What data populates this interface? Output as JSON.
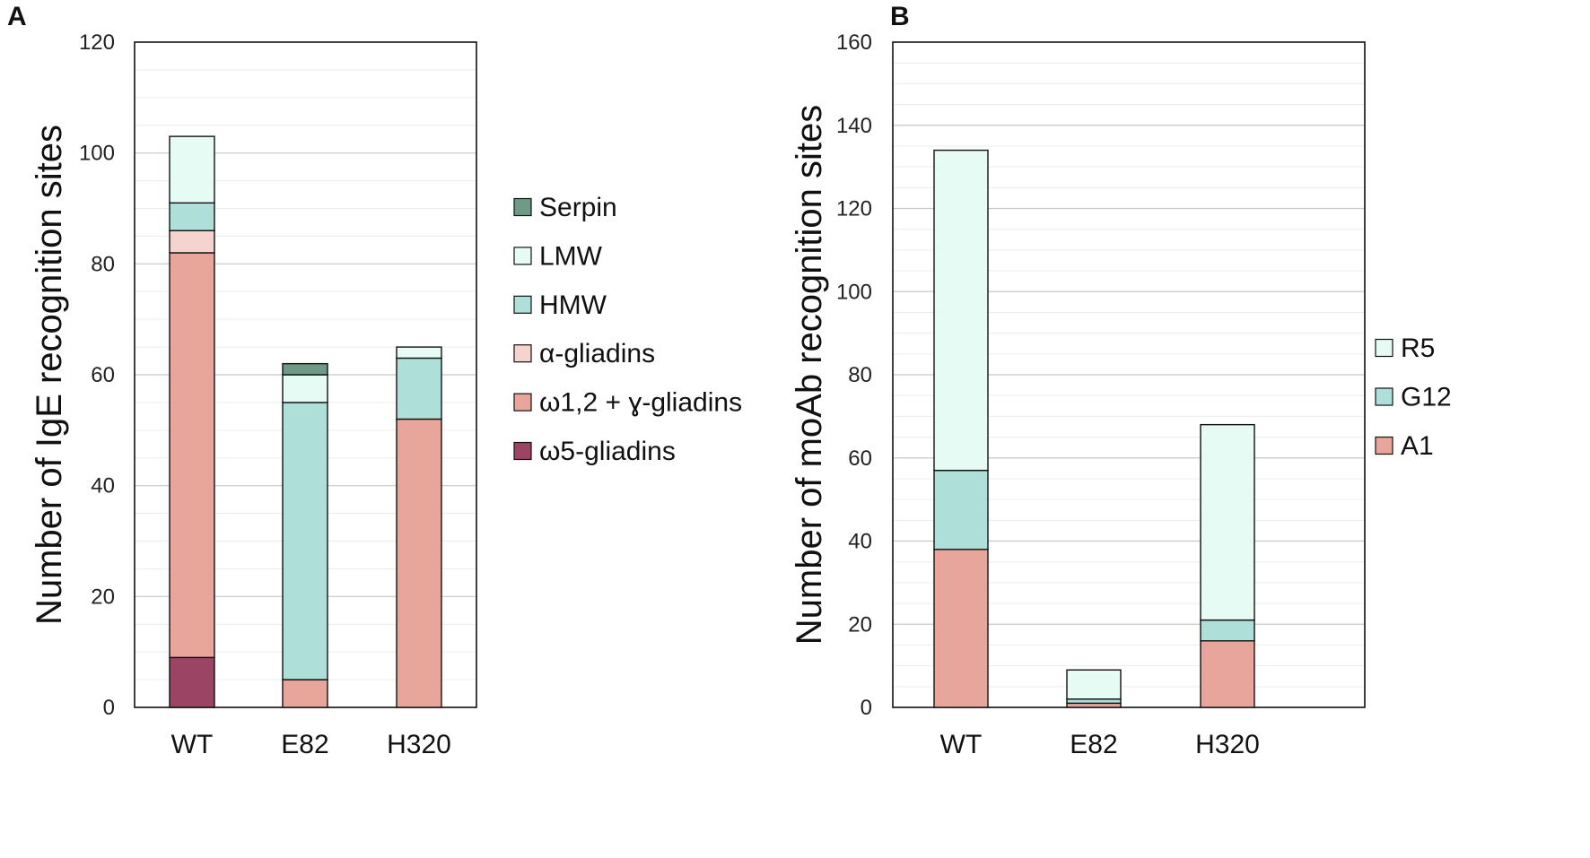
{
  "figure": {
    "panel_a_letter": "A",
    "panel_b_letter": "B"
  },
  "chart_data": [
    {
      "type": "bar",
      "stacked": true,
      "panel": "A",
      "title": "",
      "xlabel": "",
      "ylabel": "Number of IgE recognition sites",
      "ylim": [
        0,
        120
      ],
      "major_ticks": [
        0,
        20,
        40,
        60,
        80,
        100,
        120
      ],
      "minor_step": 5,
      "categories": [
        "WT",
        "E82",
        "H320"
      ],
      "series": [
        {
          "name": "ω5-gliadins",
          "color": "#9b4463",
          "values": [
            9,
            0,
            0
          ]
        },
        {
          "name": "ω1,2 + ɣ-gliadins",
          "color": "#e8a59c",
          "values": [
            73,
            5,
            52
          ]
        },
        {
          "name": "α-gliadins",
          "color": "#f5d3cf",
          "values": [
            4,
            0,
            0
          ]
        },
        {
          "name": "HMW",
          "color": "#aee0d9",
          "values": [
            5,
            50,
            11
          ]
        },
        {
          "name": "LMW",
          "color": "#e7fbf5",
          "values": [
            12,
            5,
            2
          ]
        },
        {
          "name": "Serpin",
          "color": "#6f9a86",
          "values": [
            0,
            2,
            0
          ]
        }
      ],
      "legend_order": [
        "Serpin",
        "LMW",
        "HMW",
        "α-gliadins",
        "ω1,2 + ɣ-gliadins",
        "ω5-gliadins"
      ],
      "legend_position": "right"
    },
    {
      "type": "bar",
      "stacked": true,
      "panel": "B",
      "title": "",
      "xlabel": "",
      "ylabel": "Number of moAb recognition sites",
      "ylim": [
        0,
        160
      ],
      "major_ticks": [
        0,
        20,
        40,
        60,
        80,
        100,
        120,
        140,
        160
      ],
      "minor_step": 5,
      "categories": [
        "WT",
        "E82",
        "H320"
      ],
      "series": [
        {
          "name": "A1",
          "color": "#e8a59c",
          "values": [
            38,
            1,
            16
          ]
        },
        {
          "name": "G12",
          "color": "#aee0d9",
          "values": [
            19,
            1,
            5
          ]
        },
        {
          "name": "R5",
          "color": "#e7fbf5",
          "values": [
            77,
            7,
            47
          ]
        }
      ],
      "legend_order": [
        "R5",
        "G12",
        "A1"
      ],
      "legend_position": "right"
    }
  ]
}
